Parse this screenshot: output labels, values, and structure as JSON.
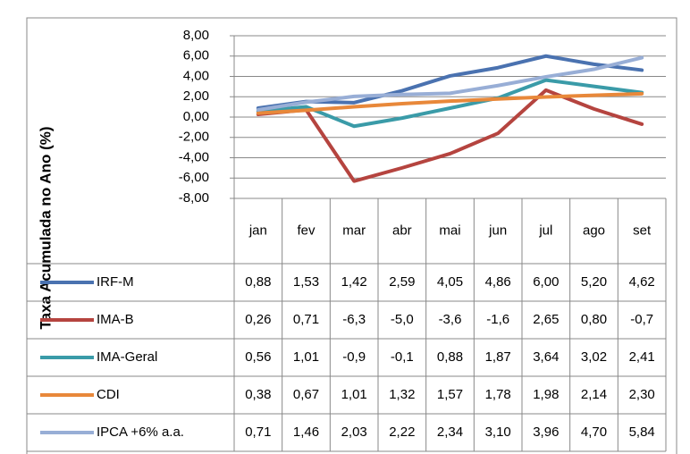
{
  "chart_data": {
    "type": "line",
    "y_axis_label": "Taxa Acumulada no Ano (%)",
    "categories": [
      "jan",
      "fev",
      "mar",
      "abr",
      "mai",
      "jun",
      "jul",
      "ago",
      "set"
    ],
    "ylim": [
      -8,
      8
    ],
    "yticks": [
      {
        "value": -8,
        "label": "-8,00"
      },
      {
        "value": -6,
        "label": "-6,00"
      },
      {
        "value": -4,
        "label": "-4,00"
      },
      {
        "value": -2,
        "label": "-2,00"
      },
      {
        "value": 0,
        "label": "0,00"
      },
      {
        "value": 2,
        "label": "2,00"
      },
      {
        "value": 4,
        "label": "4,00"
      },
      {
        "value": 6,
        "label": "6,00"
      },
      {
        "value": 8,
        "label": "8,00"
      }
    ],
    "grid": true,
    "series": [
      {
        "name": "IRF-M",
        "color": "#4a72b0",
        "values": [
          0.88,
          1.53,
          1.42,
          2.59,
          4.05,
          4.86,
          6.0,
          5.2,
          4.62
        ],
        "value_labels": [
          "0,88",
          "1,53",
          "1,42",
          "2,59",
          "4,05",
          "4,86",
          "6,00",
          "5,20",
          "4,62"
        ]
      },
      {
        "name": "IMA-B",
        "color": "#b5443f",
        "values": [
          0.26,
          0.71,
          -6.3,
          -5.0,
          -3.6,
          -1.6,
          2.65,
          0.8,
          -0.7
        ],
        "value_labels": [
          "0,26",
          "0,71",
          "-6,3",
          "-5,0",
          "-3,6",
          "-1,6",
          "2,65",
          "0,80",
          "-0,7"
        ]
      },
      {
        "name": "IMA-Geral",
        "color": "#3a9ba8",
        "values": [
          0.56,
          1.01,
          -0.9,
          -0.1,
          0.88,
          1.87,
          3.64,
          3.02,
          2.41
        ],
        "value_labels": [
          "0,56",
          "1,01",
          "-0,9",
          "-0,1",
          "0,88",
          "1,87",
          "3,64",
          "3,02",
          "2,41"
        ]
      },
      {
        "name": "CDI",
        "color": "#e8883a",
        "values": [
          0.38,
          0.67,
          1.01,
          1.32,
          1.57,
          1.78,
          1.98,
          2.14,
          2.3
        ],
        "value_labels": [
          "0,38",
          "0,67",
          "1,01",
          "1,32",
          "1,57",
          "1,78",
          "1,98",
          "2,14",
          "2,30"
        ]
      },
      {
        "name": "IPCA +6% a.a.",
        "color": "#98aed6",
        "values": [
          0.71,
          1.46,
          2.03,
          2.22,
          2.34,
          3.1,
          3.96,
          4.7,
          5.84
        ],
        "value_labels": [
          "0,71",
          "1,46",
          "2,03",
          "2,22",
          "2,34",
          "3,10",
          "3,96",
          "4,70",
          "5,84"
        ]
      }
    ]
  }
}
